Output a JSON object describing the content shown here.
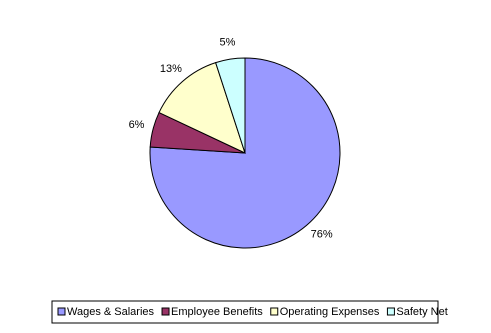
{
  "chart_data": {
    "type": "pie",
    "categories": [
      "Wages & Salaries",
      "Employee Benefits",
      "Operating Expenses",
      "Safety Net"
    ],
    "values": [
      76,
      6,
      13,
      5
    ],
    "value_labels": [
      "76%",
      "6%",
      "13%",
      "5%"
    ],
    "colors": [
      "#9999ff",
      "#993366",
      "#ffffcc",
      "#ccffff"
    ],
    "legend": "bottom"
  }
}
